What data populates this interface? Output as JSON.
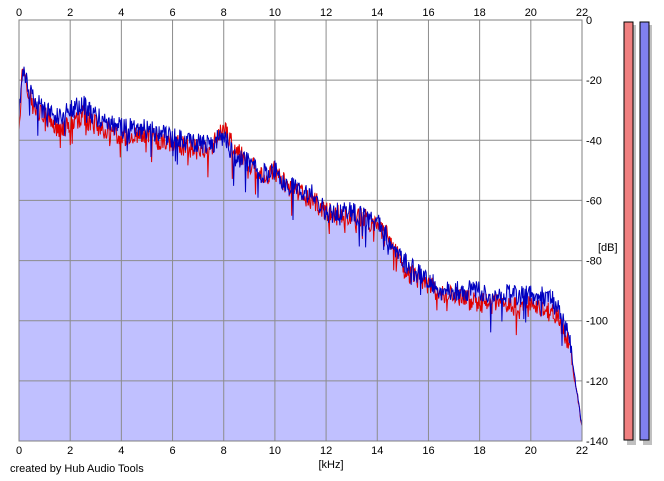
{
  "chart_data": {
    "type": "area",
    "xlabel": "[kHz]",
    "ylabel": "[dB]",
    "xlim": [
      0,
      22
    ],
    "ylim": [
      -140,
      0
    ],
    "x_ticks": [
      "0",
      "2",
      "4",
      "6",
      "8",
      "10",
      "12",
      "14",
      "16",
      "18",
      "20",
      "22"
    ],
    "y_ticks": [
      "0",
      "-20",
      "-40",
      "-60",
      "-80",
      "-100",
      "-120",
      "-140"
    ],
    "grid": true,
    "series": [
      {
        "color": "#e00000",
        "x": [
          0,
          0.15,
          0.5,
          1,
          1.5,
          2,
          2.5,
          3,
          3.5,
          4,
          4.5,
          5,
          5.5,
          6,
          6.5,
          7,
          7.5,
          8,
          8.5,
          9,
          9.5,
          10,
          10.5,
          11,
          11.5,
          12,
          12.5,
          13,
          13.5,
          14,
          14.5,
          15,
          15.5,
          16,
          16.5,
          17,
          17.5,
          18,
          18.5,
          19,
          19.5,
          20,
          20.5,
          21,
          21.5,
          22
        ],
        "values": [
          -35,
          -15,
          -28,
          -32,
          -36,
          -35,
          -32,
          -35,
          -37,
          -40,
          -38,
          -38,
          -40,
          -41,
          -42,
          -43,
          -42,
          -36,
          -44,
          -48,
          -52,
          -50,
          -56,
          -58,
          -60,
          -64,
          -65,
          -66,
          -66,
          -68,
          -73,
          -82,
          -86,
          -88,
          -91,
          -92,
          -93,
          -94,
          -94,
          -95,
          -95,
          -95,
          -96,
          -98,
          -108,
          -135
        ]
      },
      {
        "color": "#0000c0",
        "x": [
          0,
          0.15,
          0.5,
          1,
          1.5,
          2,
          2.5,
          3,
          3.5,
          4,
          4.5,
          5,
          5.5,
          6,
          6.5,
          7,
          7.5,
          8,
          8.5,
          9,
          9.5,
          10,
          10.5,
          11,
          11.5,
          12,
          12.5,
          13,
          13.5,
          14,
          14.5,
          15,
          15.5,
          16,
          16.5,
          17,
          17.5,
          18,
          18.5,
          19,
          19.5,
          20,
          20.5,
          21,
          21.5,
          22
        ],
        "values": [
          -32,
          -15,
          -26,
          -30,
          -32,
          -30,
          -28,
          -32,
          -34,
          -36,
          -36,
          -36,
          -38,
          -39,
          -40,
          -41,
          -41,
          -39,
          -46,
          -47,
          -51,
          -50,
          -55,
          -57,
          -58,
          -64,
          -64,
          -64,
          -66,
          -67,
          -74,
          -80,
          -84,
          -86,
          -90,
          -90,
          -90,
          -90,
          -91,
          -91,
          -92,
          -91,
          -92,
          -94,
          -106,
          -135
        ]
      }
    ],
    "channel_meters": [
      {
        "color": "#f08080"
      },
      {
        "color": "#8080f0"
      }
    ]
  },
  "footer": {
    "credit": "created by Hub Audio Tools"
  }
}
